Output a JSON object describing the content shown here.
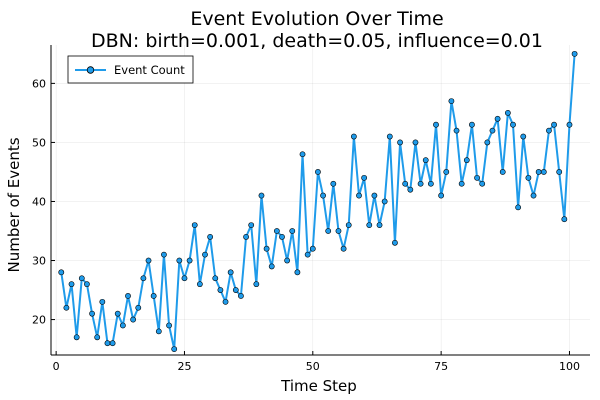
{
  "chart_data": {
    "type": "line",
    "title": "Event Evolution Over Time",
    "subtitle": "DBN: birth=0.001, death=0.05, influence=0.01",
    "xlabel": "Time Step",
    "ylabel": "Number of Events",
    "xlim": [
      -1,
      104
    ],
    "ylim": [
      14,
      66.5
    ],
    "xticks": [
      0,
      25,
      50,
      75,
      100
    ],
    "yticks": [
      20,
      30,
      40,
      50,
      60
    ],
    "grid": true,
    "legend_position": "top-left",
    "series": [
      {
        "name": "Event Count",
        "color": "#1f9bea",
        "marker": "circle",
        "x": [
          1,
          2,
          3,
          4,
          5,
          6,
          7,
          8,
          9,
          10,
          11,
          12,
          13,
          14,
          15,
          16,
          17,
          18,
          19,
          20,
          21,
          22,
          23,
          24,
          25,
          26,
          27,
          28,
          29,
          30,
          31,
          32,
          33,
          34,
          35,
          36,
          37,
          38,
          39,
          40,
          41,
          42,
          43,
          44,
          45,
          46,
          47,
          48,
          49,
          50,
          51,
          52,
          53,
          54,
          55,
          56,
          57,
          58,
          59,
          60,
          61,
          62,
          63,
          64,
          65,
          66,
          67,
          68,
          69,
          70,
          71,
          72,
          73,
          74,
          75,
          76,
          77,
          78,
          79,
          80,
          81,
          82,
          83,
          84,
          85,
          86,
          87,
          88,
          89,
          90,
          91,
          92,
          93,
          94,
          95,
          96,
          97,
          98,
          99,
          100,
          101
        ],
        "values": [
          28,
          22,
          26,
          17,
          27,
          26,
          21,
          17,
          23,
          16,
          16,
          21,
          19,
          24,
          20,
          22,
          27,
          30,
          24,
          18,
          31,
          19,
          15,
          30,
          27,
          30,
          36,
          26,
          31,
          34,
          27,
          25,
          23,
          28,
          25,
          24,
          34,
          36,
          26,
          41,
          32,
          29,
          35,
          34,
          30,
          35,
          28,
          48,
          31,
          32,
          45,
          41,
          35,
          43,
          35,
          32,
          36,
          51,
          41,
          44,
          36,
          41,
          36,
          40,
          51,
          33,
          50,
          43,
          42,
          50,
          43,
          47,
          43,
          53,
          41,
          45,
          57,
          52,
          43,
          47,
          53,
          44,
          43,
          50,
          52,
          54,
          45,
          55,
          53,
          39,
          51,
          44,
          41,
          45,
          45,
          52,
          53,
          45,
          37,
          53,
          65
        ]
      }
    ]
  }
}
